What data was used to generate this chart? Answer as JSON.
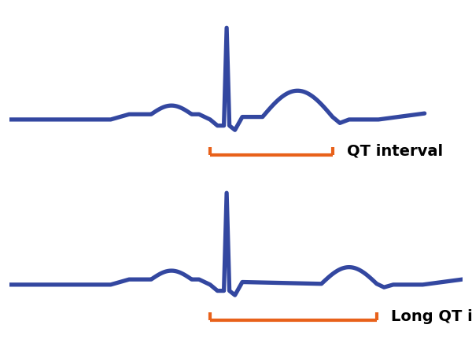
{
  "ecg_color": "#3347A0",
  "bracket_color": "#E8611A",
  "background_color": "#FFFFFF",
  "text_color": "#000000",
  "line_width": 3.8,
  "bracket_lw": 3.0,
  "label_normal": "QT interval",
  "label_long": "Long QT interval",
  "label_fontsize": 14,
  "label_fontweight": "bold",
  "fig_width": 6.0,
  "fig_height": 4.36,
  "dpi": 100
}
